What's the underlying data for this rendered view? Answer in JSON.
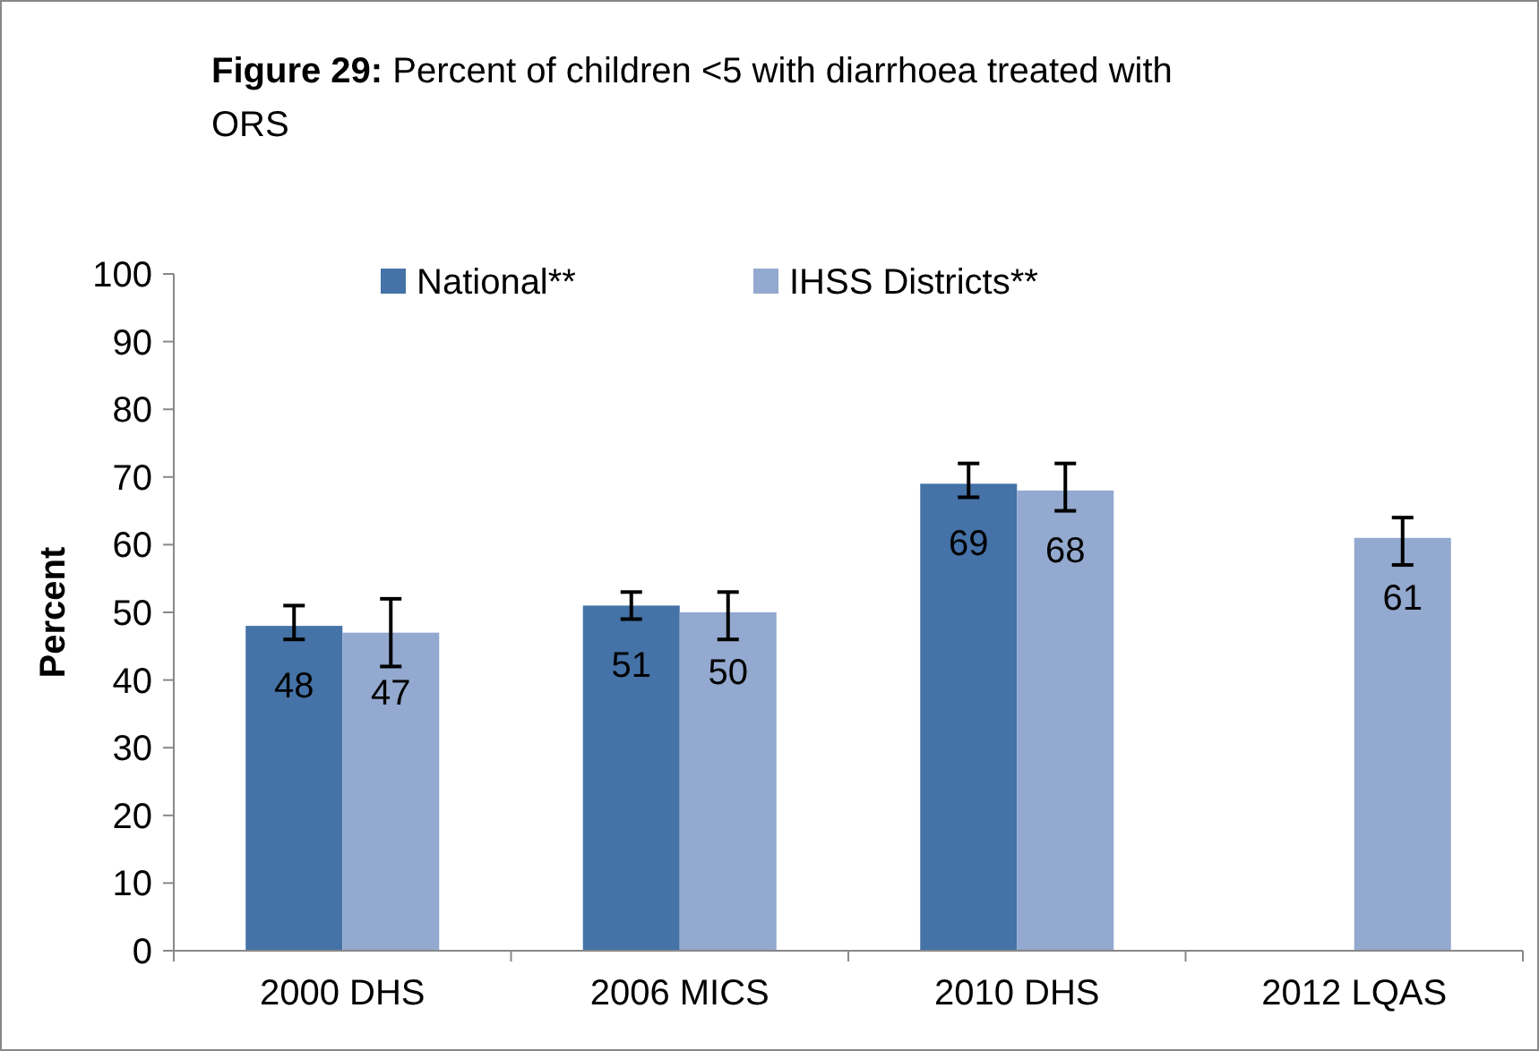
{
  "chart_data": {
    "type": "bar",
    "title": "Figure 29: Percent of children <5 with diarrhoea treated with ORS",
    "ylabel": "Percent",
    "categories": [
      "2000 DHS",
      "2006 MICS",
      "2010 DHS",
      "2012 LQAS"
    ],
    "series": [
      {
        "name": "National**",
        "color": "#4572a7",
        "values": [
          48,
          51,
          69,
          null
        ],
        "errors": [
          [
            46,
            51
          ],
          [
            49,
            53
          ],
          [
            67,
            72
          ],
          null
        ]
      },
      {
        "name": "IHSS Districts**",
        "color": "#93a9cf",
        "values": [
          47,
          50,
          68,
          61
        ],
        "errors": [
          [
            42,
            52
          ],
          [
            46,
            53
          ],
          [
            65,
            72
          ],
          [
            57,
            64
          ]
        ]
      }
    ],
    "ylim": [
      0,
      100
    ],
    "yticks": [
      0,
      10,
      20,
      30,
      40,
      50,
      60,
      70,
      80,
      90,
      100
    ],
    "grid": false,
    "legend": "top",
    "data_labels": true
  }
}
